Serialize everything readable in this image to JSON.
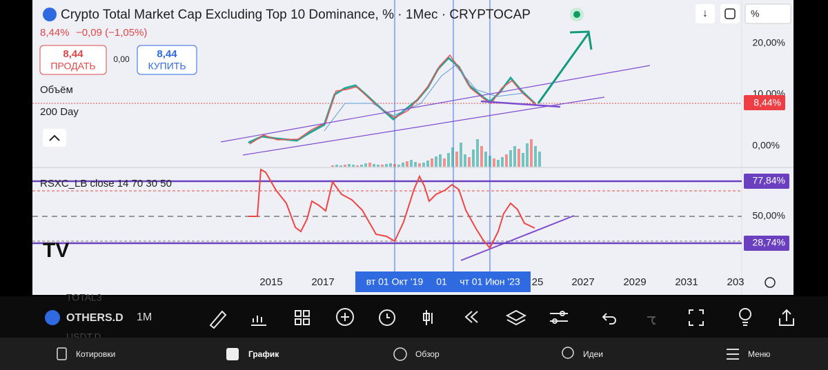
{
  "header": {
    "title": "Crypto Total Market Cap Excluding Top 10 Dominance, % · 1Мес · CRYPTOCAP",
    "last": "8,44%",
    "change": "−0,09 (−1,05%)",
    "unit_button": "%"
  },
  "trade": {
    "sell_price": "8,44",
    "sell_label": "ПРОДАТЬ",
    "spread": "0,00",
    "buy_price": "8,44",
    "buy_label": "КУПИТЬ"
  },
  "indicators": [
    "Объём",
    "200 Day"
  ],
  "price_axis": [
    "20,00%",
    "10,00%",
    "0,00%"
  ],
  "price_current": "8,44%",
  "rsi": {
    "label": "RSXC_LB close 14 70 30 50",
    "upper": "77,84%",
    "mid": "50,00%",
    "lower": "28,74%"
  },
  "time_axis": [
    "2015",
    "2017",
    "25",
    "2027",
    "2029",
    "2031",
    "203"
  ],
  "crosshairs": [
    "вт 01 Окт '19",
    "01",
    "чт 01 Июн '23"
  ],
  "toolbar": {
    "symbol": "OTHERS.D",
    "interval": "1M",
    "ghost_above": "TOTAL3",
    "ghost_below": "USDT.D"
  },
  "nav": [
    "Котировки",
    "График",
    "Обзор",
    "Идеи",
    "Меню"
  ]
}
